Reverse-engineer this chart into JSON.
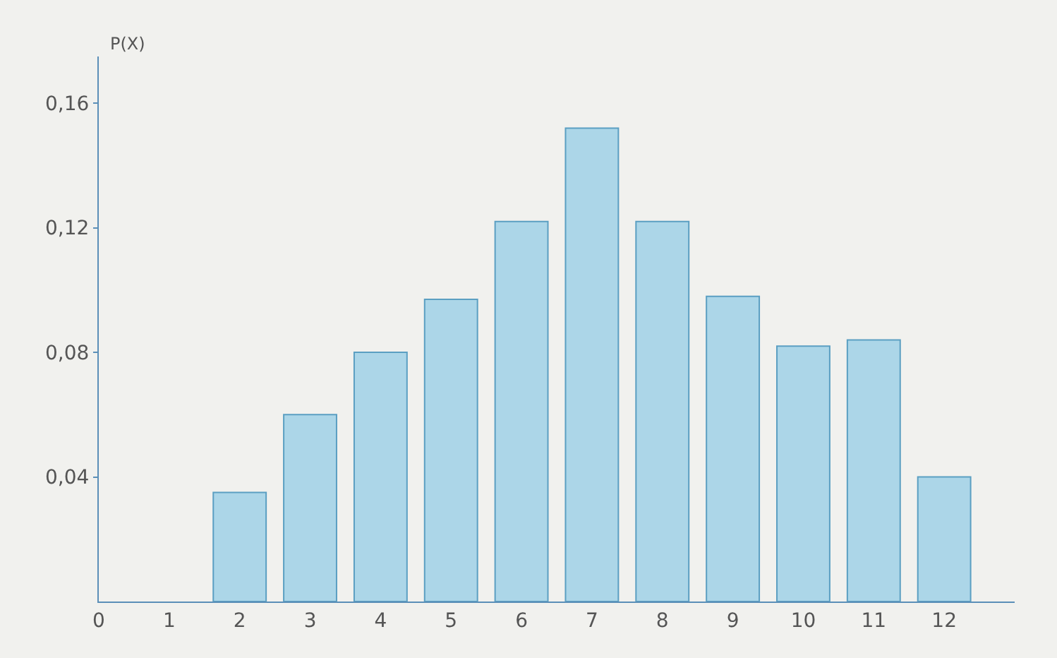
{
  "chart_data": {
    "type": "bar",
    "ylabel": "P(X)",
    "x": [
      2,
      3,
      4,
      5,
      6,
      7,
      8,
      9,
      10,
      11,
      12
    ],
    "values": [
      0.035,
      0.06,
      0.08,
      0.097,
      0.122,
      0.152,
      0.122,
      0.098,
      0.082,
      0.084,
      0.04
    ],
    "color": "#acd6e8",
    "xlim": [
      0,
      13
    ],
    "xticks": [
      0,
      1,
      2,
      3,
      4,
      5,
      6,
      7,
      8,
      9,
      10,
      11,
      12
    ],
    "ylim": [
      0,
      0.175
    ],
    "yticks": [
      {
        "value": 0.04,
        "label": "0,04"
      },
      {
        "value": 0.08,
        "label": "0,08"
      },
      {
        "value": 0.12,
        "label": "0,12"
      },
      {
        "value": 0.16,
        "label": "0,16"
      }
    ],
    "grid": false,
    "legend": false
  }
}
